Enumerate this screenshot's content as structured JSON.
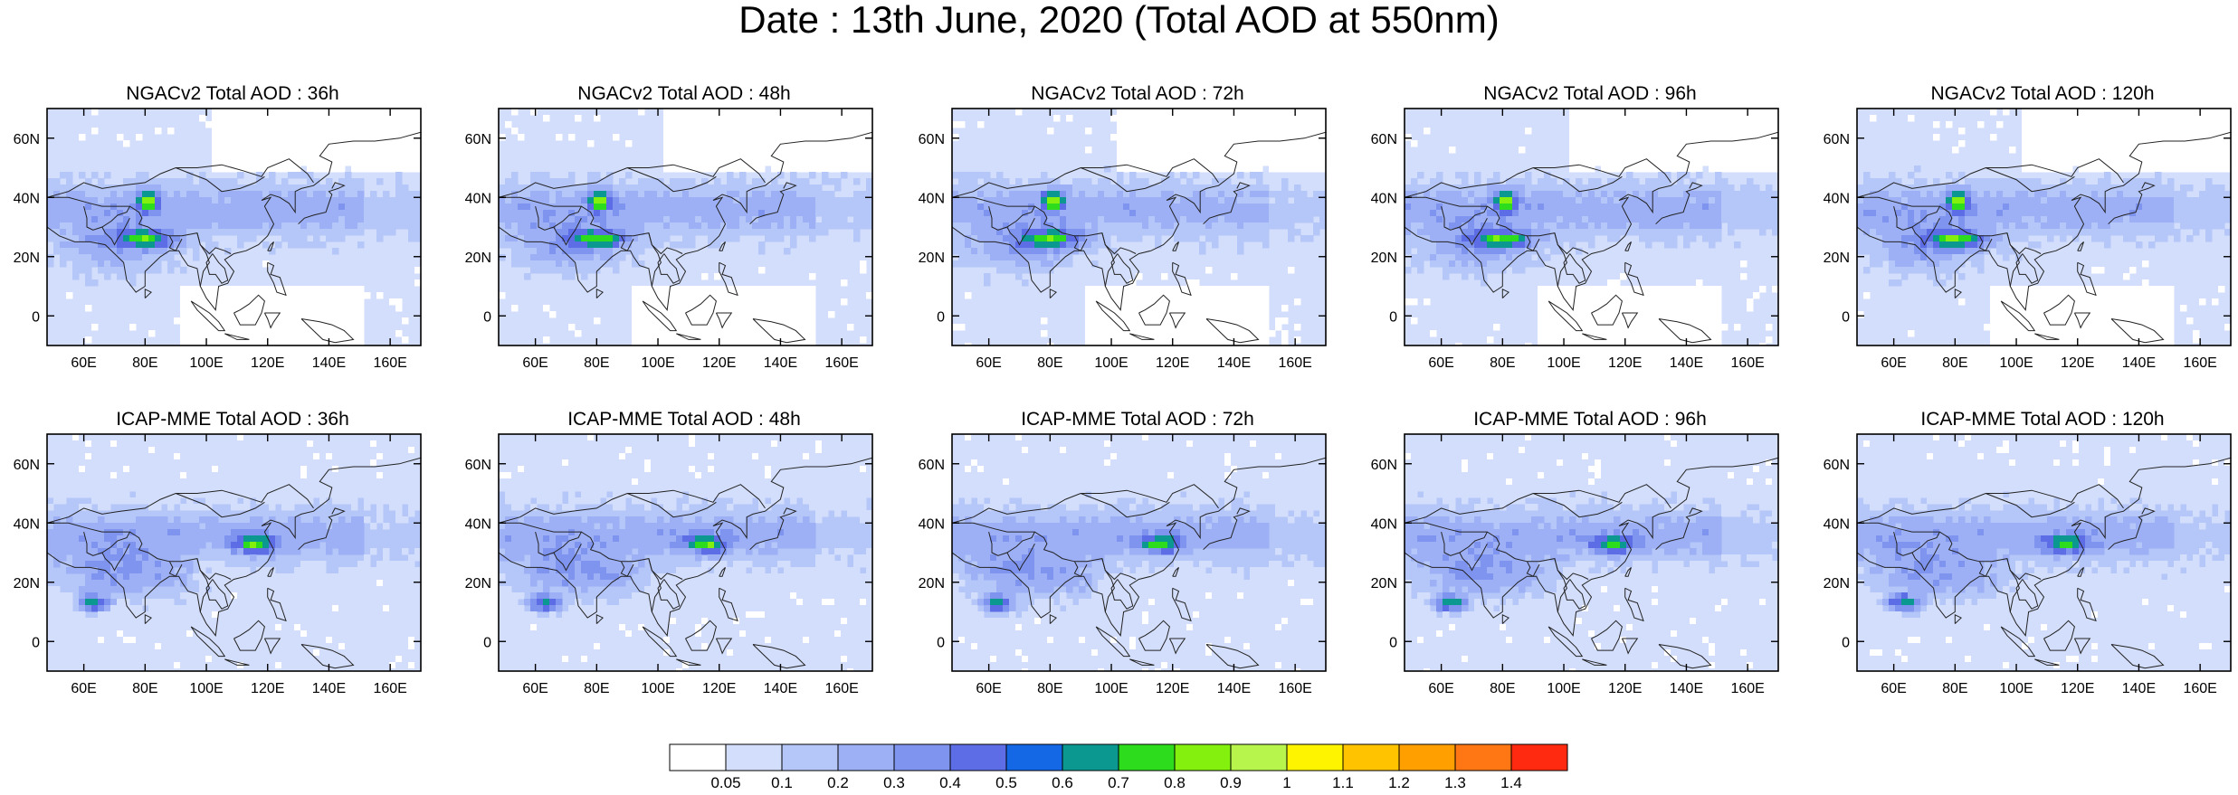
{
  "page": {
    "title": "Date : 13th June, 2020 (Total AOD at 550nm)"
  },
  "axes": {
    "lat_labels": [
      "60N",
      "40N",
      "20N",
      "0"
    ],
    "lon_labels": [
      "60E",
      "80E",
      "100E",
      "120E",
      "140E",
      "160E"
    ]
  },
  "rows": [
    {
      "model": "NGACv2",
      "panels": [
        {
          "title": "NGACv2 Total AOD : 36h",
          "forecast_hour": 36
        },
        {
          "title": "NGACv2 Total AOD : 48h",
          "forecast_hour": 48
        },
        {
          "title": "NGACv2 Total AOD : 72h",
          "forecast_hour": 72
        },
        {
          "title": "NGACv2 Total AOD : 96h",
          "forecast_hour": 96
        },
        {
          "title": "NGACv2 Total AOD : 120h",
          "forecast_hour": 120
        }
      ]
    },
    {
      "model": "ICAP-MME",
      "panels": [
        {
          "title": "ICAP-MME Total AOD : 36h",
          "forecast_hour": 36
        },
        {
          "title": "ICAP-MME Total AOD : 48h",
          "forecast_hour": 48
        },
        {
          "title": "ICAP-MME Total AOD : 72h",
          "forecast_hour": 72
        },
        {
          "title": "ICAP-MME Total AOD : 96h",
          "forecast_hour": 96
        },
        {
          "title": "ICAP-MME Total AOD : 120h",
          "forecast_hour": 120
        }
      ]
    }
  ],
  "colorbar": {
    "labels": [
      "0.05",
      "0.1",
      "0.2",
      "0.3",
      "0.4",
      "0.5",
      "0.6",
      "0.7",
      "0.8",
      "0.9",
      "1",
      "1.1",
      "1.2",
      "1.3",
      "1.4"
    ],
    "colors": [
      "#ffffff",
      "#d3defc",
      "#b5c6f9",
      "#9db0f5",
      "#7f94ef",
      "#5c6de6",
      "#1468e6",
      "#0b9890",
      "#2ddc1c",
      "#84f00e",
      "#b7f44c",
      "#fff400",
      "#ffc300",
      "#ffa000",
      "#ff7614",
      "#ff2a10"
    ]
  }
}
